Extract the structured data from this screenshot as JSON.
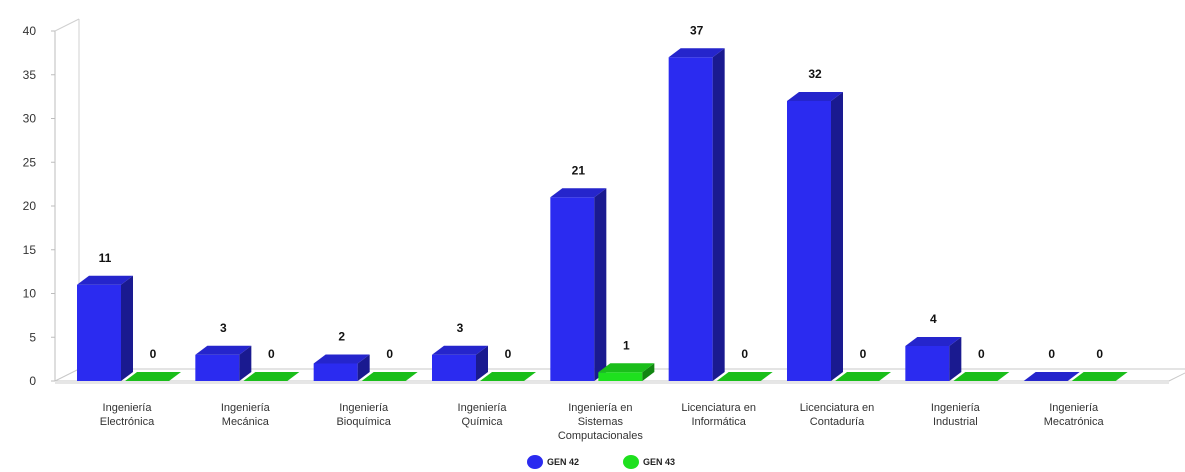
{
  "chart_data": {
    "type": "bar",
    "title": "",
    "xlabel": "",
    "ylabel": "",
    "ylim": [
      0,
      40
    ],
    "yticks": [
      0,
      5,
      10,
      15,
      20,
      25,
      30,
      35,
      40
    ],
    "grid": false,
    "legend_position": "bottom",
    "categories": [
      [
        "Ingeniería",
        "Electrónica"
      ],
      [
        "Ingeniería",
        "Mecánica"
      ],
      [
        "Ingeniería",
        "Bioquímica"
      ],
      [
        "Ingeniería",
        "Química"
      ],
      [
        "Ingeniería en",
        "Sistemas",
        "Computacionales"
      ],
      [
        "Licenciatura en",
        "Informática"
      ],
      [
        "Licenciatura en",
        "Contaduría"
      ],
      [
        "Ingeniería",
        "Industrial"
      ],
      [
        "Ingeniería",
        "Mecatrónica"
      ]
    ],
    "series": [
      {
        "name": "GEN 42",
        "color": "#2b2bf0",
        "values": [
          11,
          3,
          2,
          3,
          21,
          37,
          32,
          4,
          0
        ]
      },
      {
        "name": "GEN 43",
        "color": "#1ee01e",
        "values": [
          0,
          0,
          0,
          0,
          1,
          0,
          0,
          0,
          0
        ]
      }
    ]
  }
}
